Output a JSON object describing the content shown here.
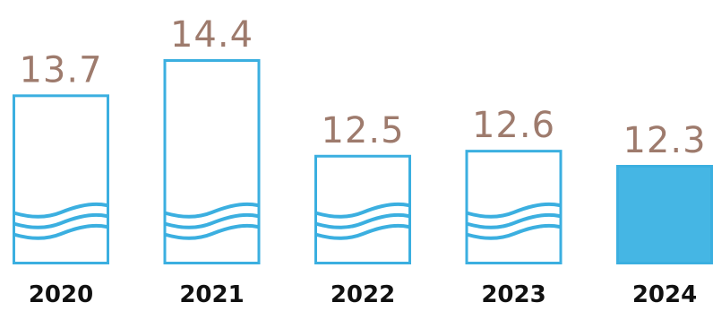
{
  "chart_data": {
    "type": "bar",
    "categories": [
      "2020",
      "2021",
      "2022",
      "2023",
      "2024"
    ],
    "values": [
      13.7,
      14.4,
      12.5,
      12.6,
      12.3
    ],
    "value_labels": [
      "13.7",
      "14.4",
      "12.5",
      "12.6",
      "12.3"
    ],
    "title": "",
    "xlabel": "",
    "ylabel": "",
    "ylim": [
      0,
      14.4
    ],
    "highlight_index": 4,
    "grid": false,
    "legend": "none"
  },
  "colors": {
    "bar_outline": "#3bafe0",
    "bar_highlight_fill": "#45b6e4",
    "wave": "#3bafe0",
    "value_text": "#9e7b6d",
    "year_text": "#111111"
  }
}
